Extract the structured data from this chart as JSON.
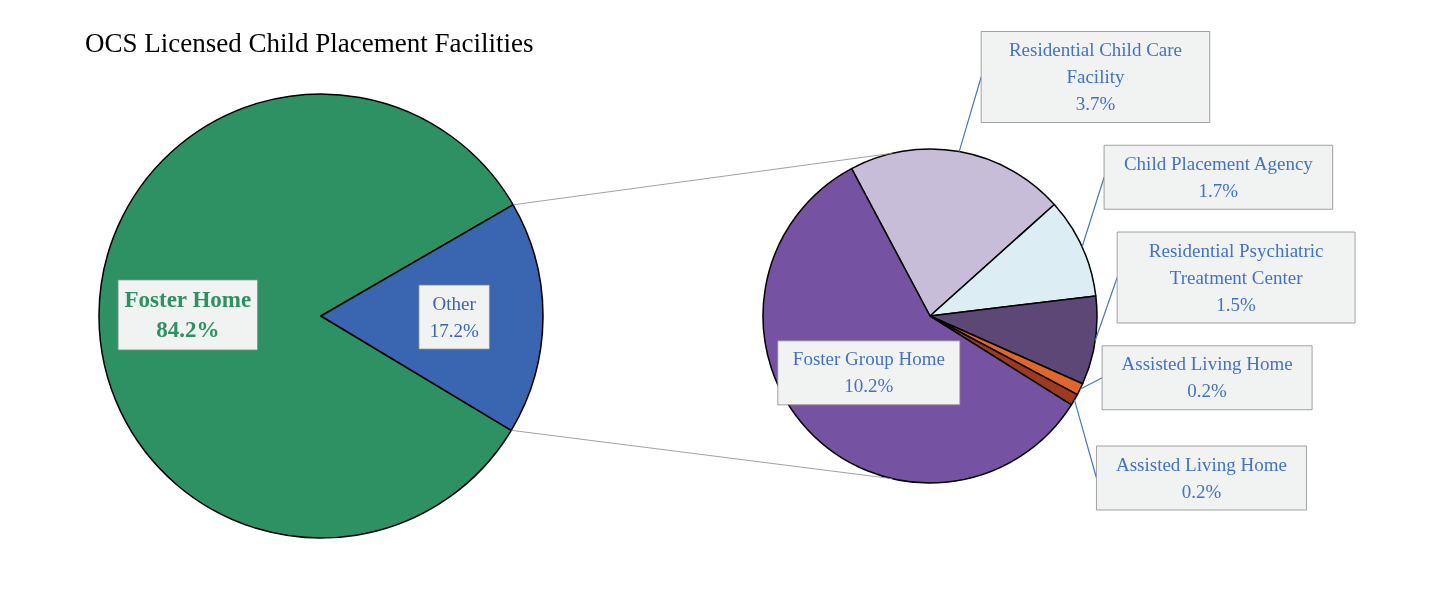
{
  "chart_data": [
    {
      "type": "pie",
      "title": "OCS Licensed Child Placement Facilities",
      "categories": [
        "Foster Home",
        "Other"
      ],
      "values": [
        84.2,
        17.2
      ],
      "colors": [
        "#2e9163",
        "#3a65b0"
      ],
      "value_labels": [
        "84.2%",
        "17.2%"
      ]
    },
    {
      "type": "pie",
      "categories": [
        "Residential Child Care Facility",
        "Child Placement Agency",
        "Residential Psychiatric Treatment Center",
        "Assisted Living Home",
        "Assisted Living Home",
        "Foster Group Home"
      ],
      "values": [
        3.7,
        1.7,
        1.5,
        0.2,
        0.2,
        10.2
      ],
      "colors": [
        "#c8bdd8",
        "#dcedf3",
        "#5c4776",
        "#e0672a",
        "#9e3a22",
        "#7652a2"
      ],
      "value_labels": [
        "3.7%",
        "1.7%",
        "1.5%",
        "0.2%",
        "0.2%",
        "10.2%"
      ]
    }
  ]
}
